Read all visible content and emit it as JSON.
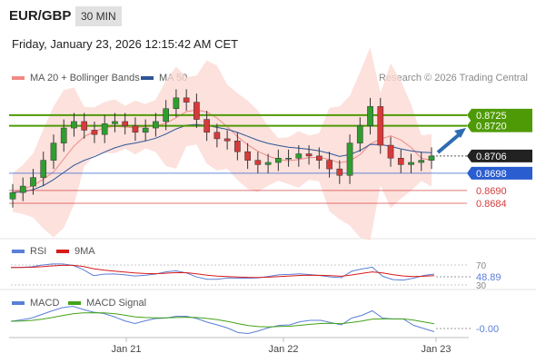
{
  "header": {
    "pair": "EUR/GBP",
    "timeframe": "30 MIN",
    "datetime": "Friday, January 23, 2026 12:15:42 AM CET"
  },
  "legend": {
    "main": [
      {
        "label": "MA 20 + Bollinger Bands",
        "color": "#f08a84"
      },
      {
        "label": "MA 50",
        "color": "#2e5596"
      }
    ],
    "rsi": [
      {
        "label": "RSI",
        "color": "#5b7fd6"
      },
      {
        "label": "9MA",
        "color": "#d81a1a"
      }
    ],
    "macd": [
      {
        "label": "MACD",
        "color": "#5b7fd6"
      },
      {
        "label": "MACD Signal",
        "color": "#43a317"
      }
    ]
  },
  "credit": "Research © 2026 Trading Central",
  "chart_data": {
    "type": "candlestick",
    "instrument": "EUR/GBP",
    "interval": "30 MIN",
    "ylim": [
      0.8668,
      0.8738
    ],
    "x_tick_labels": [
      "Jan 21",
      "Jan 22",
      "Jan 23"
    ],
    "levels": [
      {
        "value": 0.8725,
        "label": "0.8725",
        "kind": "resistance",
        "color": "#4e9a06"
      },
      {
        "value": 0.872,
        "label": "0.8720",
        "kind": "resistance",
        "color": "#4e9a06"
      },
      {
        "value": 0.8706,
        "label": "0.8706",
        "kind": "last price",
        "color": "#222222"
      },
      {
        "value": 0.8698,
        "label": "0.8698",
        "kind": "pivot",
        "color": "#2a5dcf"
      },
      {
        "value": 0.869,
        "label": "0.8690",
        "kind": "support",
        "color": "#d43c3c"
      },
      {
        "value": 0.8684,
        "label": "0.8684",
        "kind": "support",
        "color": "#d43c3c"
      }
    ],
    "close_approx": [
      0.8689,
      0.8692,
      0.8696,
      0.8704,
      0.8712,
      0.8719,
      0.8722,
      0.8718,
      0.8716,
      0.8721,
      0.8722,
      0.872,
      0.8717,
      0.8719,
      0.8722,
      0.8728,
      0.8733,
      0.8731,
      0.8723,
      0.8717,
      0.8714,
      0.8713,
      0.8708,
      0.8704,
      0.8702,
      0.8703,
      0.8705,
      0.8705,
      0.8707,
      0.8706,
      0.8704,
      0.87,
      0.8697,
      0.8712,
      0.872,
      0.8729,
      0.8711,
      0.8705,
      0.8702,
      0.8703,
      0.8704,
      0.8706
    ],
    "rsi": {
      "value_label": "48.89",
      "levels": [
        70,
        30
      ],
      "level_labels": [
        "70",
        "30"
      ]
    },
    "macd": {
      "value_label": "-0.00"
    }
  }
}
